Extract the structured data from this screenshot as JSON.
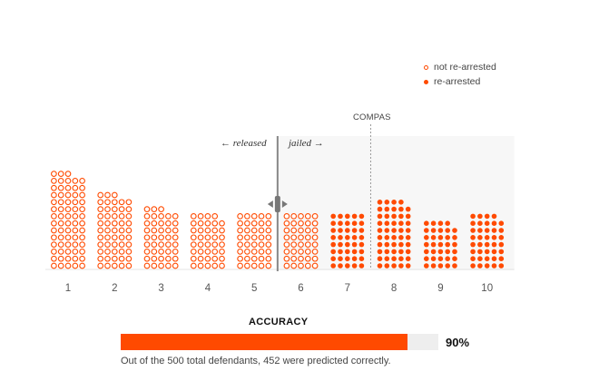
{
  "legend": {
    "not_rearrested": "not re-arrested",
    "rearrested": "re-arrested"
  },
  "threshold": {
    "label": "COMPAS",
    "released_label": "← released",
    "jailed_label": "jailed →",
    "handle_icon": "left-right-drag-arrows",
    "position": 5.5
  },
  "colors": {
    "accent": "#ff4a00",
    "jailed_band": "#f7f7f7",
    "threshold_line": "#888888",
    "accuracy_track": "#eeeeee"
  },
  "chart_data": {
    "type": "dot-histogram",
    "x": [
      1,
      2,
      3,
      4,
      5,
      6,
      7,
      8,
      9,
      10
    ],
    "series": [
      {
        "name": "not re-arrested",
        "style": "hollow",
        "values": [
          68,
          53,
          43,
          39,
          40,
          40,
          0,
          0,
          0,
          0
        ],
        "shown_for_scores": [
          1,
          2,
          3,
          4,
          5,
          6
        ]
      },
      {
        "name": "re-arrested",
        "style": "filled",
        "values": [
          0,
          0,
          0,
          0,
          0,
          0,
          40,
          49,
          34,
          39
        ],
        "shown_for_scores": [
          7,
          8,
          9,
          10
        ]
      }
    ],
    "compas_cutoff": 7.5,
    "grid": false
  },
  "accuracy": {
    "title": "ACCURACY",
    "value": 0.904,
    "value_label": "90%",
    "caption": "Out of the 500 total defendants, 452 were predicted correctly."
  }
}
